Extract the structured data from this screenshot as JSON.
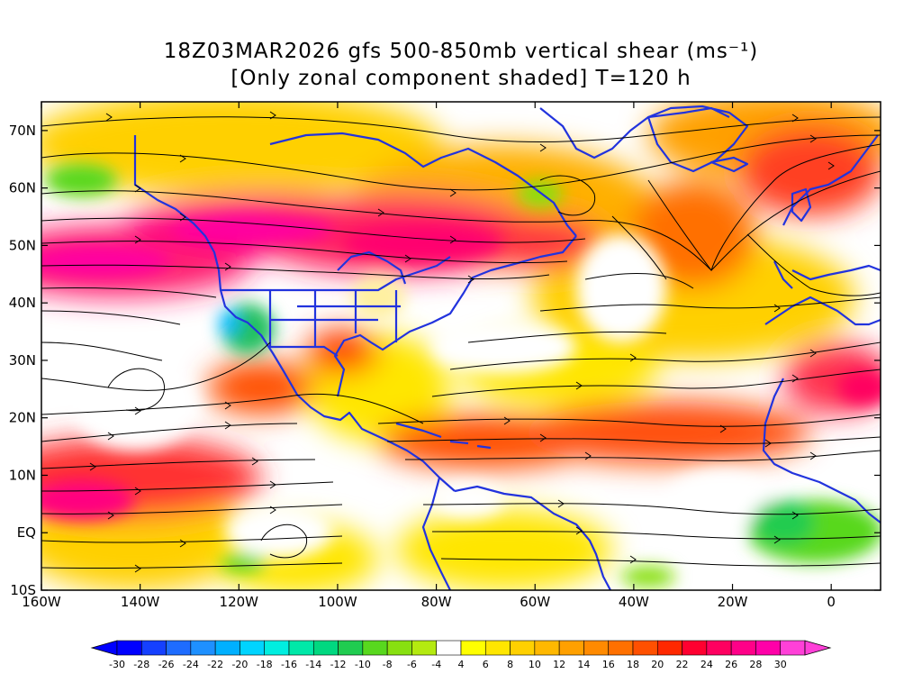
{
  "title": {
    "line1": "18Z03MAR2026 gfs 500-850mb vertical shear (ms⁻¹)",
    "line2": "[Only zonal component shaded] T=120 h"
  },
  "map": {
    "lat_labels": [
      "70N",
      "60N",
      "50N",
      "40N",
      "30N",
      "20N",
      "10N",
      "EQ",
      "10S"
    ],
    "lat_values": [
      70,
      60,
      50,
      40,
      30,
      20,
      10,
      0,
      -10
    ],
    "lon_labels": [
      "160W",
      "140W",
      "120W",
      "100W",
      "80W",
      "60W",
      "40W",
      "20W",
      "0"
    ],
    "lon_values": [
      -160,
      -140,
      -120,
      -100,
      -80,
      -60,
      -40,
      -20,
      0
    ],
    "lon_range": [
      -160,
      10
    ],
    "lat_range": [
      -10,
      75
    ],
    "coastline_color": "#2233dd",
    "streamline_color": "#000000",
    "shading_description": "zonal component of 500-850mb shear"
  },
  "colorbar": {
    "labels": [
      "-30",
      "-28",
      "-26",
      "-24",
      "-22",
      "-20",
      "-18",
      "-16",
      "-14",
      "-12",
      "-10",
      "-8",
      "-6",
      "-4",
      "4",
      "6",
      "8",
      "10",
      "12",
      "14",
      "16",
      "18",
      "20",
      "22",
      "24",
      "26",
      "28",
      "30"
    ],
    "colors": [
      "#0000ff",
      "#1540ff",
      "#1e6cff",
      "#1e90ff",
      "#00b0ff",
      "#00d4ff",
      "#00eee0",
      "#00e8a8",
      "#00d880",
      "#20cc50",
      "#58d81e",
      "#88e010",
      "#b4ea10",
      "#ffffff",
      "#ffff00",
      "#ffe600",
      "#ffd000",
      "#ffb800",
      "#ffa000",
      "#ff8a00",
      "#ff7000",
      "#ff5000",
      "#ff2800",
      "#ff0030",
      "#ff0060",
      "#ff0088",
      "#ff00a8",
      "#ff40d8"
    ]
  }
}
